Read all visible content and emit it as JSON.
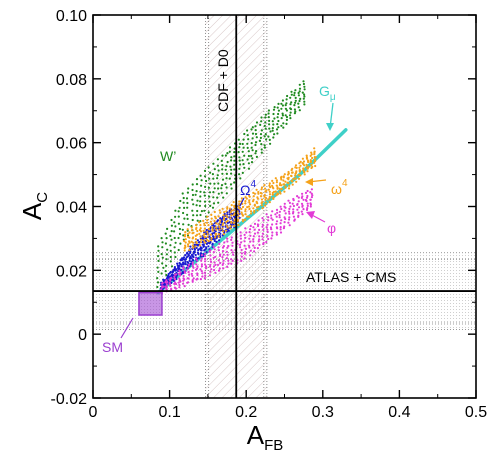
{
  "chart_data": {
    "type": "scatter",
    "xlabel_main": "A",
    "xlabel_sub": "FB",
    "ylabel_main": "A",
    "ylabel_sub": "C",
    "xlim": [
      0,
      0.5
    ],
    "ylim": [
      -0.02,
      0.1
    ],
    "xticks": [
      0,
      0.1,
      0.2,
      0.3,
      0.4,
      0.5
    ],
    "yticks": [
      -0.02,
      0,
      0.02,
      0.04,
      0.06,
      0.08,
      0.1
    ],
    "xtick_labels": [
      "0",
      "0.1",
      "0.2",
      "0.3",
      "0.4",
      "0.5"
    ],
    "ytick_labels": [
      "-0.02",
      "0",
      "0.02",
      "0.04",
      "0.06",
      "0.08",
      "0.10"
    ],
    "grid": false,
    "measurements": {
      "cdf_d0": {
        "label": "CDF + D0",
        "central": 0.187,
        "band_inner": [
          0.151,
          0.223
        ],
        "band_outer": [
          0.147,
          0.227
        ]
      },
      "atlas_cms": {
        "label": "ATLAS + CMS",
        "central": 0.0135,
        "band_inner": [
          0.0035,
          0.0235
        ],
        "band_outer": [
          0.0015,
          0.0255
        ]
      }
    },
    "series": [
      {
        "name": "W’",
        "color": "#1f8a1f",
        "lower": [
          [
            0.085,
            0.013
          ],
          [
            0.12,
            0.03
          ],
          [
            0.17,
            0.043
          ],
          [
            0.22,
            0.057
          ],
          [
            0.275,
            0.072
          ]
        ],
        "upper": [
          [
            0.08,
            0.025
          ],
          [
            0.12,
            0.045
          ],
          [
            0.17,
            0.056
          ],
          [
            0.22,
            0.068
          ],
          [
            0.28,
            0.08
          ]
        ]
      },
      {
        "name": "G",
        "sub": "μ",
        "color": "#3fd0c8",
        "line": [
          [
            0.085,
            0.013
          ],
          [
            0.12,
            0.02
          ],
          [
            0.17,
            0.03
          ],
          [
            0.22,
            0.04
          ],
          [
            0.27,
            0.05
          ],
          [
            0.33,
            0.064
          ]
        ]
      },
      {
        "name": "Ω",
        "sup": "4",
        "color": "#1a1ad0",
        "lower": [
          [
            0.09,
            0.014
          ],
          [
            0.12,
            0.02
          ],
          [
            0.145,
            0.025
          ],
          [
            0.165,
            0.03
          ],
          [
            0.19,
            0.035
          ]
        ],
        "upper": [
          [
            0.09,
            0.016
          ],
          [
            0.12,
            0.025
          ],
          [
            0.15,
            0.033
          ],
          [
            0.17,
            0.037
          ],
          [
            0.19,
            0.041
          ]
        ]
      },
      {
        "name": "ω",
        "sup": "4",
        "color": "#f5a21a",
        "lower": [
          [
            0.12,
            0.026
          ],
          [
            0.16,
            0.03
          ],
          [
            0.2,
            0.036
          ],
          [
            0.25,
            0.045
          ],
          [
            0.3,
            0.055
          ]
        ],
        "upper": [
          [
            0.12,
            0.032
          ],
          [
            0.16,
            0.038
          ],
          [
            0.2,
            0.043
          ],
          [
            0.25,
            0.05
          ],
          [
            0.29,
            0.058
          ]
        ]
      },
      {
        "name": "φ",
        "color": "#e23ad6",
        "lower": [
          [
            0.09,
            0.013
          ],
          [
            0.15,
            0.018
          ],
          [
            0.2,
            0.024
          ],
          [
            0.25,
            0.033
          ],
          [
            0.285,
            0.04
          ]
        ],
        "upper": [
          [
            0.09,
            0.016
          ],
          [
            0.15,
            0.026
          ],
          [
            0.2,
            0.033
          ],
          [
            0.25,
            0.041
          ],
          [
            0.29,
            0.046
          ]
        ]
      }
    ],
    "sm": {
      "label": "SM",
      "color": "#9b3fd0",
      "x_range": [
        0.06,
        0.09
      ],
      "y_range": [
        0.006,
        0.013
      ]
    }
  }
}
